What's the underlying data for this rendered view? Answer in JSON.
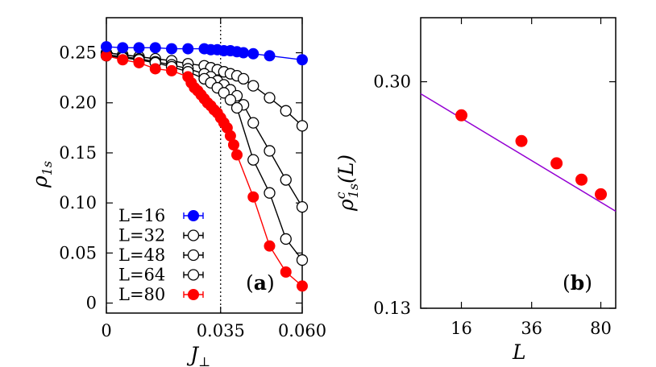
{
  "chart_data": [
    {
      "type": "line",
      "panel_label": "(a)",
      "panel_letter": "a",
      "xlabel": "J",
      "xlabel_sub": "⊥",
      "ylabel": "ρ",
      "ylabel_sub": "1s",
      "xlim": [
        0,
        0.06
      ],
      "ylim": [
        -0.01,
        0.285
      ],
      "x_ticks": [
        {
          "value": 0,
          "label": "0"
        },
        {
          "value": 0.035,
          "label": "0.035"
        },
        {
          "value": 0.06,
          "label": "0.060"
        }
      ],
      "y_ticks": [
        {
          "value": 0,
          "label": "0"
        },
        {
          "value": 0.05,
          "label": "0.05"
        },
        {
          "value": 0.1,
          "label": "0.10"
        },
        {
          "value": 0.15,
          "label": "0.15"
        },
        {
          "value": 0.2,
          "label": "0.20"
        },
        {
          "value": 0.25,
          "label": "0.25"
        }
      ],
      "vline": 0.035,
      "legend_position": "bottom-left",
      "series": [
        {
          "name": "L=16",
          "marker": "filled",
          "color": "#0000ff",
          "x": [
            0,
            0.005,
            0.01,
            0.015,
            0.02,
            0.025,
            0.03,
            0.032,
            0.034,
            0.036,
            0.038,
            0.04,
            0.042,
            0.045,
            0.05,
            0.06
          ],
          "y": [
            0.256,
            0.255,
            0.255,
            0.255,
            0.254,
            0.254,
            0.254,
            0.253,
            0.253,
            0.252,
            0.252,
            0.251,
            0.25,
            0.249,
            0.247,
            0.243
          ]
        },
        {
          "name": "L=32",
          "marker": "open",
          "color": "#000000",
          "x": [
            0,
            0.005,
            0.01,
            0.015,
            0.02,
            0.025,
            0.03,
            0.032,
            0.034,
            0.036,
            0.038,
            0.04,
            0.042,
            0.045,
            0.05,
            0.055,
            0.06
          ],
          "y": [
            0.25,
            0.248,
            0.246,
            0.244,
            0.242,
            0.239,
            0.237,
            0.235,
            0.233,
            0.231,
            0.229,
            0.227,
            0.224,
            0.217,
            0.205,
            0.192,
            0.177
          ]
        },
        {
          "name": "L=48",
          "marker": "open",
          "color": "#000000",
          "x": [
            0,
            0.005,
            0.01,
            0.015,
            0.02,
            0.025,
            0.03,
            0.032,
            0.034,
            0.036,
            0.038,
            0.04,
            0.042,
            0.045,
            0.05,
            0.055,
            0.06
          ],
          "y": [
            0.248,
            0.246,
            0.244,
            0.241,
            0.238,
            0.234,
            0.229,
            0.226,
            0.222,
            0.218,
            0.213,
            0.207,
            0.198,
            0.18,
            0.152,
            0.123,
            0.096
          ]
        },
        {
          "name": "L=64",
          "marker": "open",
          "color": "#000000",
          "x": [
            0,
            0.005,
            0.01,
            0.015,
            0.02,
            0.025,
            0.03,
            0.032,
            0.034,
            0.036,
            0.038,
            0.04,
            0.045,
            0.05,
            0.055,
            0.06
          ],
          "y": [
            0.247,
            0.245,
            0.243,
            0.24,
            0.236,
            0.231,
            0.224,
            0.22,
            0.215,
            0.21,
            0.203,
            0.195,
            0.143,
            0.11,
            0.064,
            0.043
          ]
        },
        {
          "name": "L=80",
          "marker": "filled",
          "color": "#ff0000",
          "x": [
            0,
            0.005,
            0.01,
            0.015,
            0.02,
            0.025,
            0.026,
            0.027,
            0.028,
            0.029,
            0.03,
            0.031,
            0.032,
            0.033,
            0.034,
            0.035,
            0.036,
            0.037,
            0.038,
            0.039,
            0.04,
            0.045,
            0.05,
            0.055,
            0.06
          ],
          "y": [
            0.247,
            0.243,
            0.24,
            0.234,
            0.232,
            0.226,
            0.22,
            0.215,
            0.212,
            0.208,
            0.204,
            0.2,
            0.197,
            0.193,
            0.19,
            0.185,
            0.18,
            0.175,
            0.167,
            0.158,
            0.148,
            0.106,
            0.057,
            0.031,
            0.017
          ]
        }
      ]
    },
    {
      "type": "scatter",
      "panel_label": "(b)",
      "panel_letter": "b",
      "xlabel": "L",
      "ylabel": "ρ",
      "ylabel_sup": "c",
      "ylabel_sub": "1s",
      "ylabel_suffix": "(L)",
      "xscale": "log",
      "yscale": "log",
      "xlim": [
        10,
        95
      ],
      "ylim": [
        0.13,
        0.38
      ],
      "x_ticks": [
        {
          "value": 16,
          "label": "16"
        },
        {
          "value": 36,
          "label": "36"
        },
        {
          "value": 80,
          "label": "80"
        }
      ],
      "y_ticks": [
        {
          "value": 0.13,
          "label": "0.13"
        },
        {
          "value": 0.3,
          "label": "0.30"
        }
      ],
      "series": [
        {
          "name": "data",
          "color": "#ff0000",
          "x": [
            16,
            32,
            48,
            64,
            80
          ],
          "y": [
            0.265,
            0.241,
            0.222,
            0.209,
            0.198
          ]
        },
        {
          "name": "fit",
          "color": "#9400d3",
          "x": [
            10,
            95
          ],
          "y": [
            0.287,
            0.186
          ]
        }
      ]
    }
  ]
}
